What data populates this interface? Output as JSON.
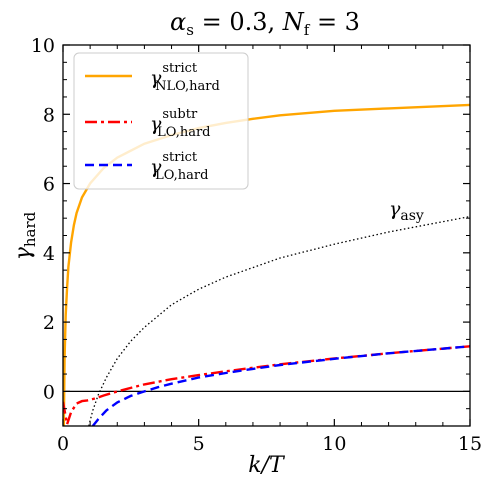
{
  "chart_data": {
    "type": "line",
    "title": "α_s = 0.3, N_f = 3",
    "title_parts": {
      "alpha": "α",
      "alpha_sub": "s",
      "alpha_eq": " = 0.3, ",
      "nf": "N",
      "nf_sub": "f",
      "nf_eq": " = 3"
    },
    "xlabel": "k/T",
    "ylabel": {
      "main": "γ",
      "sub": "hard"
    },
    "xlim": [
      0,
      15
    ],
    "ylim": [
      -1,
      10
    ],
    "xticks": [
      0,
      5,
      10,
      15
    ],
    "yticks": [
      0,
      2,
      4,
      6,
      8,
      10
    ],
    "grid": false,
    "legend_position": "top-left",
    "hline_y": 0,
    "series": [
      {
        "key": "nlo",
        "legend": {
          "main": "γ",
          "sup": "strict",
          "sub": "NLO,hard"
        },
        "color": "#ffa500",
        "dash": "solid",
        "x": [
          0.03,
          0.06,
          0.1,
          0.15,
          0.2,
          0.3,
          0.4,
          0.5,
          0.7,
          1.0,
          1.5,
          2,
          3,
          4,
          5,
          6,
          7,
          8,
          10,
          12,
          15
        ],
        "y": [
          -1.0,
          1.0,
          2.2,
          3.0,
          3.6,
          4.3,
          4.8,
          5.15,
          5.6,
          6.0,
          6.45,
          6.75,
          7.15,
          7.4,
          7.6,
          7.75,
          7.87,
          7.97,
          8.1,
          8.17,
          8.27
        ]
      },
      {
        "key": "subtr",
        "legend": {
          "main": "γ",
          "sup": "subtr",
          "sub": "LO,hard"
        },
        "color": "#ff0000",
        "dash": "dashdot",
        "x": [
          0.0,
          0.15,
          0.3,
          0.5,
          0.7,
          0.9,
          1.2,
          1.5,
          2.0,
          2.5,
          3,
          4,
          5,
          6,
          7,
          8,
          10,
          12,
          15
        ],
        "y": [
          -0.3,
          -0.95,
          -0.6,
          -0.35,
          -0.28,
          -0.26,
          -0.2,
          -0.12,
          0.0,
          0.1,
          0.2,
          0.35,
          0.47,
          0.58,
          0.68,
          0.78,
          0.95,
          1.1,
          1.3
        ]
      },
      {
        "key": "strict",
        "legend": {
          "main": "γ",
          "sup": "strict",
          "sub": "LO,hard"
        },
        "color": "#0000ff",
        "dash": "dashed",
        "x": [
          1.1,
          1.3,
          1.6,
          2.0,
          2.5,
          3.0,
          3.5,
          4,
          5,
          6,
          7,
          8,
          10,
          12,
          15
        ],
        "y": [
          -1.0,
          -0.8,
          -0.55,
          -0.32,
          -0.13,
          0.0,
          0.12,
          0.22,
          0.4,
          0.53,
          0.65,
          0.76,
          0.94,
          1.1,
          1.3
        ]
      },
      {
        "key": "asy",
        "label": {
          "main": "γ",
          "sub": "asy"
        },
        "color": "#000000",
        "dash": "dotted",
        "x": [
          0.95,
          1.0,
          1.1,
          1.3,
          1.6,
          2.0,
          2.5,
          3,
          4,
          5,
          6,
          8,
          10,
          12,
          15
        ],
        "y": [
          -1.0,
          -0.85,
          -0.55,
          -0.1,
          0.4,
          0.95,
          1.45,
          1.85,
          2.5,
          2.95,
          3.3,
          3.85,
          4.25,
          4.6,
          5.05
        ]
      }
    ]
  }
}
